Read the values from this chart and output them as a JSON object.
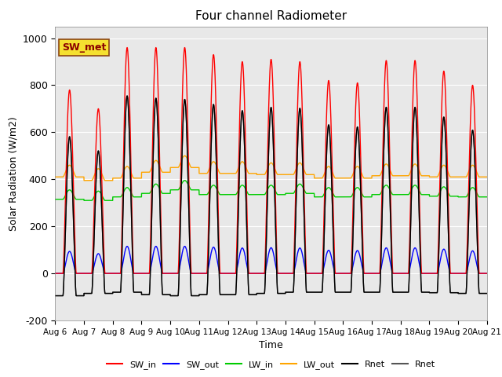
{
  "title": "Four channel Radiometer",
  "xlabel": "Time",
  "ylabel": "Solar Radiation (W/m2)",
  "ylim": [
    -200,
    1050
  ],
  "annotation": "SW_met",
  "bg_color": "#e8e8e8",
  "series": {
    "SW_in": {
      "color": "#ff0000",
      "lw": 1.0
    },
    "SW_out": {
      "color": "#0000ff",
      "lw": 1.0
    },
    "LW_in": {
      "color": "#00cc00",
      "lw": 1.0
    },
    "LW_out": {
      "color": "#ffa500",
      "lw": 1.0
    },
    "Rnet1": {
      "color": "#000000",
      "lw": 1.0
    },
    "Rnet2": {
      "color": "#555555",
      "lw": 1.0
    }
  },
  "xtick_labels": [
    "Aug 6",
    "Aug 7",
    "Aug 8",
    "Aug 9",
    "Aug 10",
    "Aug 11",
    "Aug 12",
    "Aug 13",
    "Aug 14",
    "Aug 15",
    "Aug 16",
    "Aug 17",
    "Aug 18",
    "Aug 19",
    "Aug 20",
    "Aug 21"
  ],
  "ytick_labels": [
    -200,
    0,
    200,
    400,
    600,
    800,
    1000
  ],
  "legend_entries": [
    {
      "label": "SW_in",
      "color": "#ff0000"
    },
    {
      "label": "SW_out",
      "color": "#0000ff"
    },
    {
      "label": "LW_in",
      "color": "#00cc00"
    },
    {
      "label": "LW_out",
      "color": "#ffa500"
    },
    {
      "label": "Rnet",
      "color": "#000000"
    },
    {
      "label": "Rnet",
      "color": "#555555"
    }
  ],
  "sw_in_peaks": [
    780,
    700,
    960,
    960,
    960,
    930,
    900,
    910,
    900,
    820,
    810,
    905,
    905,
    860,
    800
  ],
  "lw_out_base": [
    410,
    395,
    405,
    430,
    450,
    425,
    425,
    420,
    420,
    405,
    405,
    415,
    415,
    410,
    410
  ],
  "lw_in_base": [
    315,
    310,
    325,
    340,
    355,
    335,
    335,
    335,
    340,
    325,
    325,
    335,
    335,
    328,
    325
  ]
}
